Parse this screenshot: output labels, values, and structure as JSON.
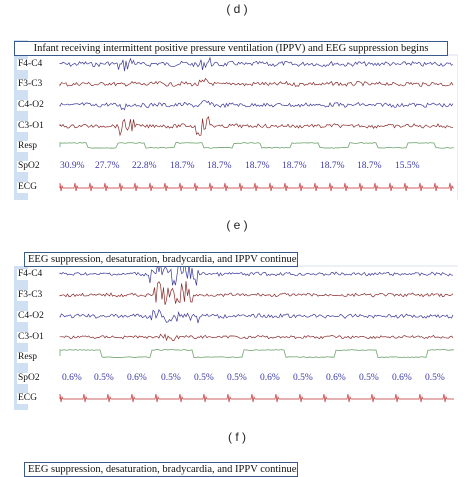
{
  "panels": [
    {
      "id": "d",
      "label": "( d )",
      "caption": "Infant receiving intermittent positive pressure ventilation (IPPV) and EEG suppression begins",
      "channels": [
        "F4-C4",
        "F3-C3",
        "C4-O2",
        "C3-O1",
        "Resp",
        "SpO2",
        "ECG"
      ],
      "spo2_values": [
        "30.9%",
        "27.7%",
        "22.8%",
        "18.7%",
        "18.7%",
        "18.7%",
        "18.7%",
        "18.7%",
        "18.7%",
        "15.5%"
      ]
    },
    {
      "id": "e",
      "label": "( e )",
      "caption": "EEG suppression, desaturation, bradycardia, and IPPV continues",
      "channels": [
        "F4-C4",
        "F3-C3",
        "C4-O2",
        "C3-O1",
        "Resp",
        "SpO2",
        "ECG"
      ],
      "spo2_values": [
        "0.6%",
        "0.5%",
        "0.6%",
        "0.5%",
        "0.5%",
        "0.5%",
        "0.6%",
        "0.5%",
        "0.6%",
        "0.5%",
        "0.6%",
        "0.5%"
      ]
    },
    {
      "id": "f",
      "label": "( f )",
      "caption": "EEG suppression, desaturation, bradycardia, and IPPV continues"
    }
  ],
  "colors": {
    "eeg_blue": "#3a3a9a",
    "eeg_red": "#8a2a2a",
    "resp_green": "#7fae7f",
    "ecg_red": "#c03030",
    "spo2_blue": "#3a3aa8",
    "sidebar": "#cfe0f2"
  }
}
